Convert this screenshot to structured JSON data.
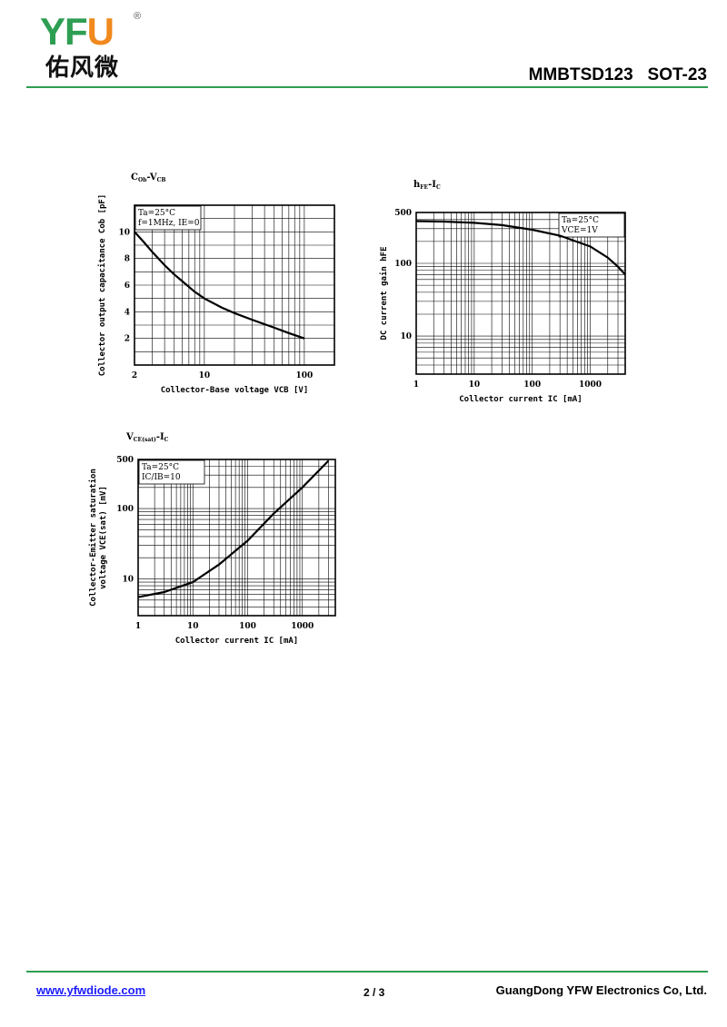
{
  "header": {
    "logo_letters_green": "YF",
    "logo_letter_orange": "U",
    "logo_registered": "®",
    "logo_chinese": "佑风微",
    "part_title": "MMBTSD123   SOT-23"
  },
  "footer": {
    "website": "www.yfwdiode.com",
    "page": "2 / 3",
    "company": "GuangDong YFW Electronics Co, Ltd."
  },
  "colors": {
    "brand_green": "#2e9e52",
    "brand_orange": "#f0891e",
    "link_blue": "#1a1aff"
  },
  "chart_data": [
    {
      "type": "line",
      "title": "COb-VCB",
      "title_main": "C",
      "title_sub": "Ob",
      "title_sep": "-V",
      "title_sub2": "CB",
      "xlabel": "Collector-Base voltage VCB [V]",
      "ylabel": "Collector output capacitance Cob [pF]",
      "x_scale": "log",
      "y_scale": "linear",
      "xlim": [
        2,
        200
      ],
      "ylim": [
        0,
        12
      ],
      "x_ticks": [
        {
          "v": 2,
          "label": "2"
        },
        {
          "v": 10,
          "label": "10"
        },
        {
          "v": 100,
          "label": "100"
        }
      ],
      "y_ticks": [
        {
          "v": 2,
          "label": "2"
        },
        {
          "v": 4,
          "label": "4"
        },
        {
          "v": 6,
          "label": "6"
        },
        {
          "v": 8,
          "label": "8"
        },
        {
          "v": 10,
          "label": "10"
        }
      ],
      "notes": [
        "Ta=25°C",
        "f=1MHz, IE=0"
      ],
      "series": [
        {
          "x": [
            2,
            2.5,
            3,
            4,
            5,
            6,
            8,
            10,
            15,
            20,
            30,
            50,
            70,
            100
          ],
          "y": [
            10,
            9.2,
            8.5,
            7.5,
            6.8,
            6.3,
            5.5,
            5.0,
            4.3,
            3.9,
            3.4,
            2.8,
            2.4,
            2.0
          ]
        }
      ]
    },
    {
      "type": "line",
      "title": "hFE-IC",
      "title_main": "h",
      "title_sub": "FE",
      "title_sep": "-I",
      "title_sub2": "C",
      "xlabel": "Collector current IC [mA]",
      "ylabel": "DC current gain hFE",
      "x_scale": "log",
      "y_scale": "log",
      "xlim": [
        1,
        4000
      ],
      "ylim": [
        3,
        500
      ],
      "x_ticks": [
        {
          "v": 1,
          "label": "1"
        },
        {
          "v": 10,
          "label": "10"
        },
        {
          "v": 100,
          "label": "100"
        },
        {
          "v": 1000,
          "label": "1000"
        }
      ],
      "y_ticks": [
        {
          "v": 10,
          "label": "10"
        },
        {
          "v": 100,
          "label": "100"
        },
        {
          "v": 500,
          "label": "500"
        }
      ],
      "notes": [
        "Ta=25°C",
        "VCE=1V"
      ],
      "series": [
        {
          "x": [
            1,
            3,
            10,
            30,
            100,
            300,
            1000,
            2000,
            3000,
            4000
          ],
          "y": [
            380,
            375,
            360,
            335,
            290,
            240,
            170,
            120,
            90,
            70
          ]
        }
      ]
    },
    {
      "type": "line",
      "title": "VCE(sat)-IC",
      "title_main": "V",
      "title_sub": "CE(sat)",
      "title_sep": "-I",
      "title_sub2": "C",
      "xlabel": "Collector current IC [mA]",
      "ylabel_line1": "Collector-Emitter saturation",
      "ylabel_line2": "voltage VCE(sat) [mV]",
      "x_scale": "log",
      "y_scale": "log",
      "xlim": [
        1,
        4000
      ],
      "ylim": [
        3,
        500
      ],
      "x_ticks": [
        {
          "v": 1,
          "label": "1"
        },
        {
          "v": 10,
          "label": "10"
        },
        {
          "v": 100,
          "label": "100"
        },
        {
          "v": 1000,
          "label": "1000"
        }
      ],
      "y_ticks": [
        {
          "v": 10,
          "label": "10"
        },
        {
          "v": 100,
          "label": "100"
        },
        {
          "v": 500,
          "label": "500"
        }
      ],
      "notes": [
        "Ta=25°C",
        "IC/IB=10"
      ],
      "series": [
        {
          "x": [
            1,
            3,
            10,
            30,
            100,
            300,
            1000,
            3000
          ],
          "y": [
            5.5,
            6.5,
            9,
            16,
            35,
            85,
            200,
            480
          ]
        }
      ]
    }
  ]
}
